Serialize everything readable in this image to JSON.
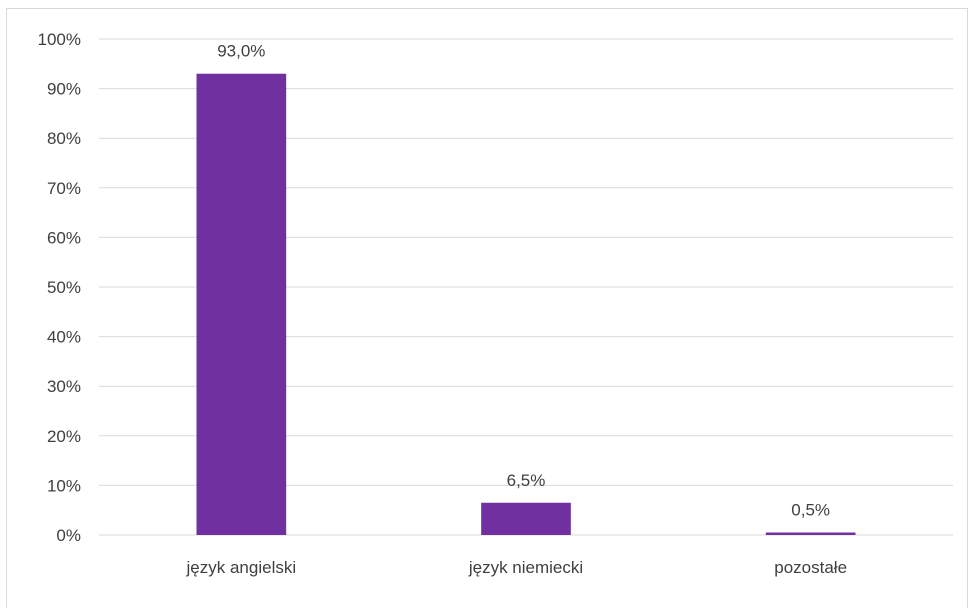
{
  "chart_data": {
    "type": "bar",
    "categories": [
      "język angielski",
      "język niemiecki",
      "pozostałe"
    ],
    "values": [
      93.0,
      6.5,
      0.5
    ],
    "data_labels": [
      "93,0%",
      "6,5%",
      "0,5%"
    ],
    "ylim": [
      0,
      100
    ],
    "y_ticks": [
      0,
      10,
      20,
      30,
      40,
      50,
      60,
      70,
      80,
      90,
      100
    ],
    "y_tick_labels": [
      "0%",
      "10%",
      "20%",
      "30%",
      "40%",
      "50%",
      "60%",
      "70%",
      "80%",
      "90%",
      "100%"
    ],
    "grid": true,
    "legend": "none",
    "colors": {
      "bar": "#7030a0",
      "grid": "#d9d9d9",
      "text": "#404040"
    }
  }
}
